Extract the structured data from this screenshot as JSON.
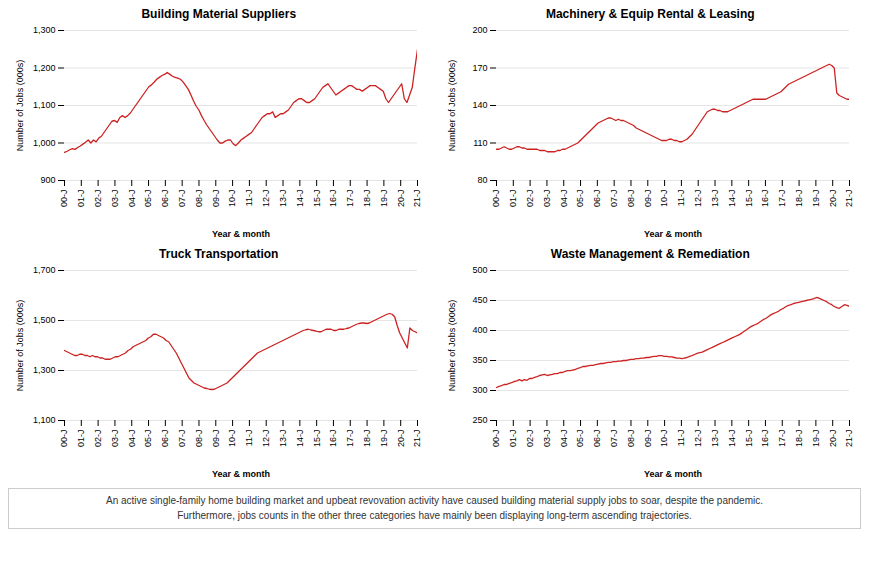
{
  "chart_data": [
    {
      "type": "line",
      "title": "Building Material Suppliers",
      "xlabel": "Year & month",
      "ylabel": "Number of Jobs (000s)",
      "color": "#cc2222",
      "grid": true,
      "values": [
        975,
        978,
        982,
        985,
        983,
        988,
        992,
        997,
        1002,
        1008,
        1000,
        1008,
        1003,
        1013,
        1018,
        1028,
        1038,
        1048,
        1058,
        1060,
        1055,
        1068,
        1073,
        1068,
        1073,
        1080,
        1090,
        1100,
        1110,
        1120,
        1130,
        1140,
        1150,
        1155,
        1162,
        1170,
        1175,
        1180,
        1183,
        1188,
        1183,
        1178,
        1175,
        1173,
        1170,
        1163,
        1153,
        1143,
        1128,
        1112,
        1098,
        1088,
        1073,
        1060,
        1048,
        1038,
        1028,
        1018,
        1008,
        1000,
        1000,
        1005,
        1008,
        1008,
        998,
        993,
        1000,
        1008,
        1013,
        1018,
        1023,
        1028,
        1038,
        1048,
        1058,
        1068,
        1073,
        1078,
        1078,
        1083,
        1068,
        1073,
        1078,
        1078,
        1083,
        1088,
        1098,
        1108,
        1113,
        1118,
        1118,
        1113,
        1108,
        1108,
        1113,
        1118,
        1128,
        1138,
        1148,
        1153,
        1158,
        1148,
        1138,
        1128,
        1133,
        1138,
        1143,
        1148,
        1153,
        1153,
        1148,
        1143,
        1143,
        1138,
        1143,
        1148,
        1153,
        1153,
        1153,
        1148,
        1143,
        1138,
        1118,
        1108,
        1118,
        1128,
        1138,
        1148,
        1158,
        1118,
        1108,
        1128,
        1148,
        1200,
        1250
      ],
      "xlim": [
        0,
        134
      ],
      "xticks": [
        {
          "value": 0,
          "label": "00-J"
        },
        {
          "value": 6.381,
          "label": "01-J"
        },
        {
          "value": 12.762,
          "label": "02-J"
        },
        {
          "value": 19.143,
          "label": "03-J"
        },
        {
          "value": 25.524,
          "label": "04-J"
        },
        {
          "value": 31.905,
          "label": "05-J"
        },
        {
          "value": 38.286,
          "label": "06-J"
        },
        {
          "value": 44.667,
          "label": "07-J"
        },
        {
          "value": 51.048,
          "label": "08-J"
        },
        {
          "value": 57.429,
          "label": "09-J"
        },
        {
          "value": 63.81,
          "label": "10-J"
        },
        {
          "value": 70.19,
          "label": "11-J"
        },
        {
          "value": 76.571,
          "label": "12-J"
        },
        {
          "value": 82.952,
          "label": "13-J"
        },
        {
          "value": 89.333,
          "label": "14-J"
        },
        {
          "value": 95.714,
          "label": "15-J"
        },
        {
          "value": 102.095,
          "label": "16-J"
        },
        {
          "value": 108.476,
          "label": "17-J"
        },
        {
          "value": 114.857,
          "label": "18-J"
        },
        {
          "value": 121.238,
          "label": "19-J"
        },
        {
          "value": 127.619,
          "label": "20-J"
        },
        {
          "value": 134,
          "label": "21-J"
        }
      ],
      "ylim": [
        900,
        1300
      ],
      "yticks": [
        900,
        {
          "value": 1000,
          "label": "1,000"
        },
        {
          "value": 1100,
          "label": "1,100"
        },
        {
          "value": 1200,
          "label": "1,200"
        },
        {
          "value": 1300,
          "label": "1,300"
        }
      ]
    },
    {
      "type": "line",
      "title": "Machinery & Equip Rental & Leasing",
      "xlabel": "Year & month",
      "ylabel": "Number of Jobs (000s)",
      "color": "#cc2222",
      "grid": true,
      "values": [
        105,
        105,
        106,
        107,
        106,
        105,
        105,
        106,
        107,
        107,
        106,
        106,
        105,
        105,
        105,
        105,
        105,
        104,
        104,
        104,
        103,
        103,
        103,
        103,
        104,
        104,
        105,
        105,
        106,
        107,
        108,
        109,
        110,
        112,
        114,
        116,
        118,
        120,
        122,
        124,
        126,
        127,
        128,
        129,
        130,
        130,
        129,
        128,
        129,
        128,
        128,
        127,
        126,
        125,
        124,
        122,
        121,
        120,
        119,
        118,
        117,
        116,
        115,
        114,
        113,
        112,
        112,
        112,
        113,
        113,
        112,
        112,
        111,
        111,
        112,
        113,
        115,
        117,
        120,
        123,
        126,
        129,
        132,
        135,
        136,
        137,
        137,
        136,
        136,
        135,
        135,
        135,
        136,
        137,
        138,
        139,
        140,
        141,
        142,
        143,
        144,
        145,
        145,
        145,
        145,
        145,
        145,
        146,
        147,
        148,
        149,
        150,
        151,
        153,
        155,
        157,
        158,
        159,
        160,
        161,
        162,
        163,
        164,
        165,
        166,
        167,
        168,
        169,
        170,
        171,
        172,
        173,
        172,
        170,
        150,
        148,
        147,
        146,
        145,
        145
      ],
      "xlim": [
        0,
        139
      ],
      "xticks": [
        {
          "value": 0,
          "label": "00-J"
        },
        {
          "value": 6.619,
          "label": "01-J"
        },
        {
          "value": 13.238,
          "label": "02-J"
        },
        {
          "value": 19.857,
          "label": "03-J"
        },
        {
          "value": 26.476,
          "label": "04-J"
        },
        {
          "value": 33.095,
          "label": "05-J"
        },
        {
          "value": 39.714,
          "label": "06-J"
        },
        {
          "value": 46.333,
          "label": "07-J"
        },
        {
          "value": 52.952,
          "label": "08-J"
        },
        {
          "value": 59.571,
          "label": "09-J"
        },
        {
          "value": 66.19,
          "label": "10-J"
        },
        {
          "value": 72.81,
          "label": "11-J"
        },
        {
          "value": 79.429,
          "label": "12-J"
        },
        {
          "value": 86.048,
          "label": "13-J"
        },
        {
          "value": 92.667,
          "label": "14-J"
        },
        {
          "value": 99.286,
          "label": "15-J"
        },
        {
          "value": 105.905,
          "label": "16-J"
        },
        {
          "value": 112.524,
          "label": "17-J"
        },
        {
          "value": 119.143,
          "label": "18-J"
        },
        {
          "value": 125.762,
          "label": "19-J"
        },
        {
          "value": 132.381,
          "label": "20-J"
        },
        {
          "value": 139,
          "label": "21-J"
        }
      ],
      "ylim": [
        80,
        200
      ],
      "yticks": [
        80,
        110,
        140,
        170,
        200
      ]
    },
    {
      "type": "line",
      "title": "Truck Transportation",
      "xlabel": "Year & month",
      "ylabel": "Number of Jobs (000s)",
      "color": "#cc2222",
      "grid": true,
      "values": [
        1380,
        1375,
        1370,
        1365,
        1360,
        1360,
        1365,
        1365,
        1360,
        1360,
        1355,
        1360,
        1355,
        1355,
        1350,
        1350,
        1345,
        1345,
        1345,
        1350,
        1355,
        1355,
        1360,
        1365,
        1370,
        1380,
        1385,
        1395,
        1400,
        1405,
        1410,
        1415,
        1420,
        1430,
        1435,
        1445,
        1445,
        1440,
        1435,
        1430,
        1420,
        1415,
        1400,
        1385,
        1370,
        1350,
        1330,
        1310,
        1290,
        1270,
        1260,
        1250,
        1245,
        1240,
        1235,
        1230,
        1228,
        1225,
        1224,
        1225,
        1230,
        1235,
        1240,
        1245,
        1250,
        1260,
        1270,
        1280,
        1290,
        1300,
        1310,
        1320,
        1330,
        1340,
        1350,
        1360,
        1370,
        1375,
        1380,
        1385,
        1390,
        1395,
        1400,
        1405,
        1410,
        1415,
        1420,
        1425,
        1430,
        1435,
        1440,
        1445,
        1450,
        1455,
        1460,
        1463,
        1465,
        1462,
        1460,
        1458,
        1455,
        1455,
        1460,
        1465,
        1465,
        1465,
        1460,
        1460,
        1465,
        1465,
        1465,
        1468,
        1470,
        1475,
        1480,
        1485,
        1488,
        1490,
        1490,
        1488,
        1490,
        1495,
        1500,
        1505,
        1510,
        1515,
        1520,
        1525,
        1528,
        1525,
        1515,
        1480,
        1450,
        1430,
        1410,
        1390,
        1470,
        1460,
        1455,
        1450
      ],
      "xlim": [
        0,
        139
      ],
      "xticks": [
        {
          "value": 0,
          "label": "00-J"
        },
        {
          "value": 6.619,
          "label": "01-J"
        },
        {
          "value": 13.238,
          "label": "02-J"
        },
        {
          "value": 19.857,
          "label": "03-J"
        },
        {
          "value": 26.476,
          "label": "04-J"
        },
        {
          "value": 33.095,
          "label": "05-J"
        },
        {
          "value": 39.714,
          "label": "06-J"
        },
        {
          "value": 46.333,
          "label": "07-J"
        },
        {
          "value": 52.952,
          "label": "08-J"
        },
        {
          "value": 59.571,
          "label": "09-J"
        },
        {
          "value": 66.19,
          "label": "10-J"
        },
        {
          "value": 72.81,
          "label": "11-J"
        },
        {
          "value": 79.429,
          "label": "12-J"
        },
        {
          "value": 86.048,
          "label": "13-J"
        },
        {
          "value": 92.667,
          "label": "14-J"
        },
        {
          "value": 99.286,
          "label": "15-J"
        },
        {
          "value": 105.905,
          "label": "16-J"
        },
        {
          "value": 112.524,
          "label": "17-J"
        },
        {
          "value": 119.143,
          "label": "18-J"
        },
        {
          "value": 125.762,
          "label": "19-J"
        },
        {
          "value": 132.381,
          "label": "20-J"
        },
        {
          "value": 139,
          "label": "21-J"
        }
      ],
      "ylim": [
        1100,
        1700
      ],
      "yticks": [
        {
          "value": 1100,
          "label": "1,100"
        },
        {
          "value": 1300,
          "label": "1,300"
        },
        {
          "value": 1500,
          "label": "1,500"
        },
        {
          "value": 1700,
          "label": "1,700"
        }
      ]
    },
    {
      "type": "line",
      "title": "Waste Management & Remediation",
      "xlabel": "Year & month",
      "ylabel": "Number of Jobs (000s)",
      "color": "#cc2222",
      "grid": true,
      "values": [
        305,
        307,
        308,
        310,
        310,
        312,
        313,
        315,
        316,
        318,
        316,
        318,
        317,
        320,
        320,
        322,
        323,
        325,
        326,
        327,
        325,
        326,
        327,
        328,
        328,
        330,
        330,
        332,
        333,
        333,
        334,
        335,
        337,
        338,
        340,
        340,
        341,
        342,
        342,
        343,
        344,
        345,
        345,
        346,
        347,
        347,
        348,
        348,
        349,
        349,
        350,
        350,
        351,
        352,
        352,
        353,
        353,
        354,
        354,
        355,
        355,
        356,
        357,
        357,
        358,
        358,
        357,
        357,
        356,
        356,
        355,
        354,
        354,
        353,
        354,
        355,
        357,
        358,
        360,
        362,
        363,
        364,
        366,
        368,
        370,
        372,
        374,
        376,
        378,
        380,
        382,
        384,
        386,
        388,
        390,
        392,
        394,
        397,
        400,
        403,
        406,
        408,
        410,
        412,
        415,
        418,
        420,
        423,
        426,
        428,
        430,
        432,
        435,
        437,
        440,
        442,
        443,
        445,
        446,
        447,
        448,
        449,
        450,
        451,
        452,
        453,
        455,
        454,
        452,
        450,
        448,
        445,
        443,
        440,
        438,
        437,
        440,
        443,
        442,
        440
      ],
      "xlim": [
        0,
        139
      ],
      "xticks": [
        {
          "value": 0,
          "label": "00-J"
        },
        {
          "value": 6.619,
          "label": "01-J"
        },
        {
          "value": 13.238,
          "label": "02-J"
        },
        {
          "value": 19.857,
          "label": "03-J"
        },
        {
          "value": 26.476,
          "label": "04-J"
        },
        {
          "value": 33.095,
          "label": "05-J"
        },
        {
          "value": 39.714,
          "label": "06-J"
        },
        {
          "value": 46.333,
          "label": "07-J"
        },
        {
          "value": 52.952,
          "label": "08-J"
        },
        {
          "value": 59.571,
          "label": "09-J"
        },
        {
          "value": 66.19,
          "label": "10-J"
        },
        {
          "value": 72.81,
          "label": "11-J"
        },
        {
          "value": 79.429,
          "label": "12-J"
        },
        {
          "value": 86.048,
          "label": "13-J"
        },
        {
          "value": 92.667,
          "label": "14-J"
        },
        {
          "value": 99.286,
          "label": "15-J"
        },
        {
          "value": 105.905,
          "label": "16-J"
        },
        {
          "value": 112.524,
          "label": "17-J"
        },
        {
          "value": 119.143,
          "label": "18-J"
        },
        {
          "value": 125.762,
          "label": "19-J"
        },
        {
          "value": 132.381,
          "label": "20-J"
        },
        {
          "value": 139,
          "label": "21-J"
        }
      ],
      "ylim": [
        250,
        500
      ],
      "yticks": [
        250,
        300,
        350,
        400,
        450,
        500
      ]
    }
  ],
  "annotations": [
    "An active single-family home building market and upbeat revovation activity have caused building material supply jobs to soar, despite the pandemic.\nFurthermore, jobs counts in the other three categories have mainly been displaying long-term ascending trajectories."
  ]
}
